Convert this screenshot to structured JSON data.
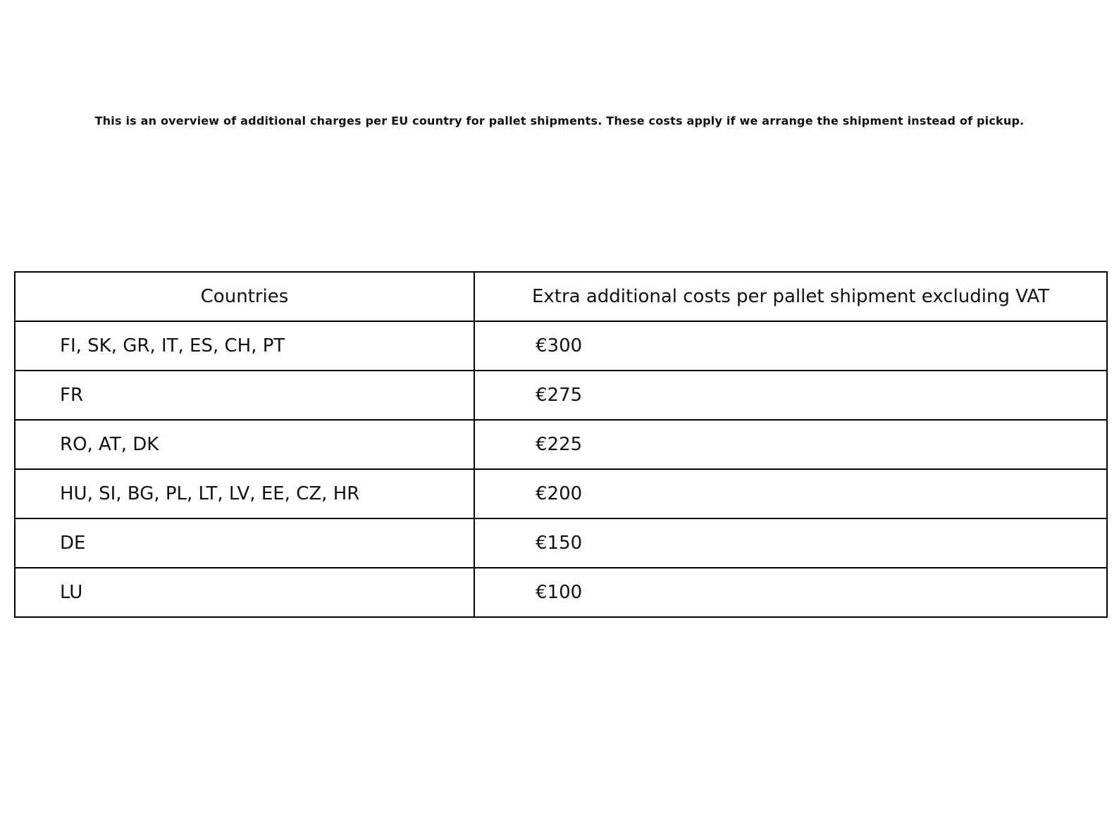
{
  "page": {
    "title": "This is an overview of additional charges per EU country for pallet shipments. These costs apply if we arrange the shipment instead of pickup."
  },
  "table": {
    "columns": [
      "Countries",
      "Extra additional costs per pallet shipment excluding VAT"
    ],
    "rows": [
      {
        "countries": "FI, SK, GR, IT, ES, CH, PT",
        "cost": "€300"
      },
      {
        "countries": "FR",
        "cost": "€275"
      },
      {
        "countries": "RO, AT, DK",
        "cost": "€225"
      },
      {
        "countries": "HU, SI, BG, PL, LT, LV, EE, CZ, HR",
        "cost": "€200"
      },
      {
        "countries": "DE",
        "cost": "€150"
      },
      {
        "countries": "LU",
        "cost": "€100"
      }
    ]
  },
  "colors": {
    "background": "#ffffff",
    "border": "#000000",
    "text": "#111111"
  }
}
